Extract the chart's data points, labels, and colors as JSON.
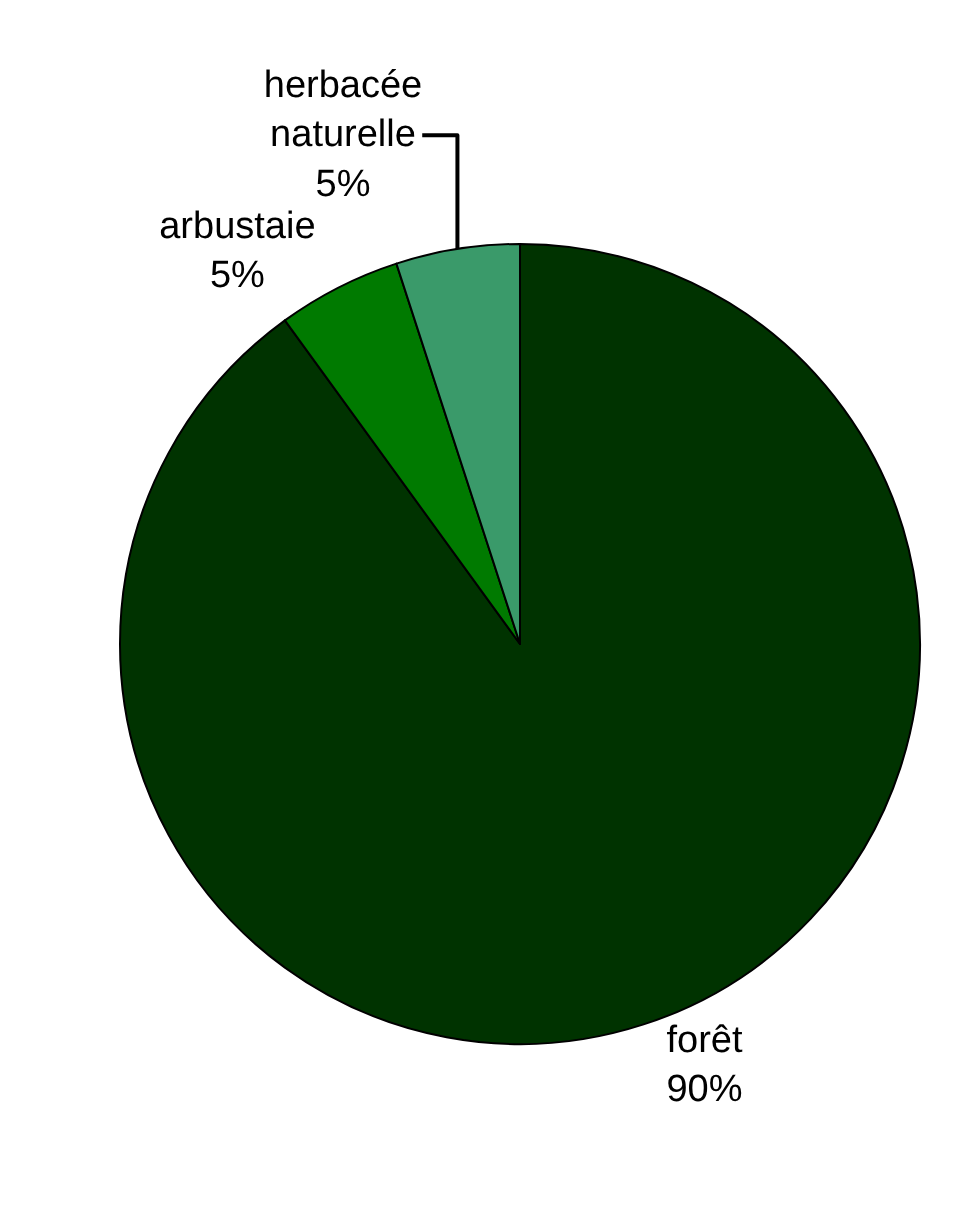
{
  "chart_data": {
    "type": "pie",
    "categories": [
      "forêt",
      "arbustaie",
      "herbacée naturelle"
    ],
    "values": [
      90,
      5,
      5
    ],
    "value_labels": [
      "90%",
      "5%",
      "5%"
    ],
    "colors": [
      "#003300",
      "#007a00",
      "#3a9a6a"
    ]
  }
}
